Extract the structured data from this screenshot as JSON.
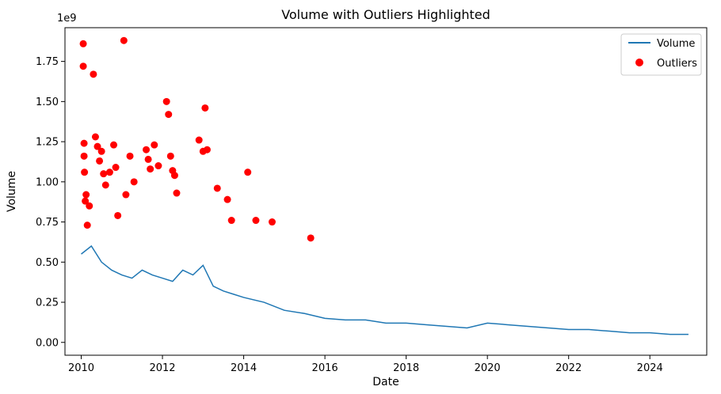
{
  "chart_data": {
    "type": "line",
    "title": "Volume with Outliers Highlighted",
    "xlabel": "Date",
    "ylabel": "Volume",
    "y_offset_label": "1e9",
    "xlim": [
      2009.6,
      2025.4
    ],
    "ylim": [
      -0.08,
      1.96
    ],
    "x_ticks": [
      2010,
      2012,
      2014,
      2016,
      2018,
      2020,
      2022,
      2024
    ],
    "x_tick_labels": [
      "2010",
      "2012",
      "2014",
      "2016",
      "2018",
      "2020",
      "2022",
      "2024"
    ],
    "y_ticks": [
      0.0,
      0.25,
      0.5,
      0.75,
      1.0,
      1.25,
      1.5,
      1.75
    ],
    "y_tick_labels": [
      "0.00",
      "0.25",
      "0.50",
      "0.75",
      "1.00",
      "1.25",
      "1.50",
      "1.75"
    ],
    "grid": false,
    "legend_position": "top-right",
    "series": [
      {
        "name": "Volume",
        "kind": "line",
        "color": "#1f77b4",
        "x": [
          2010.0,
          2010.25,
          2010.5,
          2010.75,
          2011.0,
          2011.25,
          2011.5,
          2011.75,
          2012.0,
          2012.25,
          2012.5,
          2012.75,
          2013.0,
          2013.25,
          2013.5,
          2013.75,
          2014.0,
          2014.5,
          2015.0,
          2015.5,
          2016.0,
          2016.5,
          2017.0,
          2017.5,
          2018.0,
          2018.5,
          2019.0,
          2019.5,
          2020.0,
          2020.5,
          2021.0,
          2021.5,
          2022.0,
          2022.5,
          2023.0,
          2023.5,
          2024.0,
          2024.5,
          2024.95
        ],
        "y": [
          0.55,
          0.6,
          0.5,
          0.45,
          0.42,
          0.4,
          0.45,
          0.42,
          0.4,
          0.38,
          0.45,
          0.42,
          0.48,
          0.35,
          0.32,
          0.3,
          0.28,
          0.25,
          0.2,
          0.18,
          0.15,
          0.14,
          0.14,
          0.12,
          0.12,
          0.11,
          0.1,
          0.09,
          0.12,
          0.11,
          0.1,
          0.09,
          0.08,
          0.08,
          0.07,
          0.06,
          0.06,
          0.05,
          0.05
        ]
      },
      {
        "name": "Outliers",
        "kind": "scatter",
        "color": "#ff0000",
        "x": [
          2010.05,
          2010.05,
          2010.07,
          2010.07,
          2010.08,
          2010.1,
          2010.12,
          2010.15,
          2010.2,
          2010.3,
          2010.35,
          2010.4,
          2010.45,
          2010.5,
          2010.55,
          2010.6,
          2010.7,
          2010.8,
          2010.85,
          2010.9,
          2011.05,
          2011.1,
          2011.2,
          2011.3,
          2011.6,
          2011.65,
          2011.7,
          2011.8,
          2011.9,
          2012.1,
          2012.15,
          2012.2,
          2012.25,
          2012.3,
          2012.35,
          2012.9,
          2013.0,
          2013.05,
          2013.1,
          2013.35,
          2013.6,
          2013.7,
          2014.1,
          2014.3,
          2014.7,
          2015.65
        ],
        "y": [
          1.86,
          1.72,
          1.24,
          1.16,
          1.06,
          0.88,
          0.92,
          0.73,
          0.85,
          1.67,
          1.28,
          1.22,
          1.13,
          1.19,
          1.05,
          0.98,
          1.06,
          1.23,
          1.09,
          0.79,
          1.88,
          0.92,
          1.16,
          1.0,
          1.2,
          1.14,
          1.08,
          1.23,
          1.1,
          1.5,
          1.42,
          1.16,
          1.07,
          1.04,
          0.93,
          1.26,
          1.19,
          1.46,
          1.2,
          0.96,
          0.89,
          0.76,
          1.06,
          0.76,
          0.75,
          0.65
        ]
      }
    ]
  }
}
